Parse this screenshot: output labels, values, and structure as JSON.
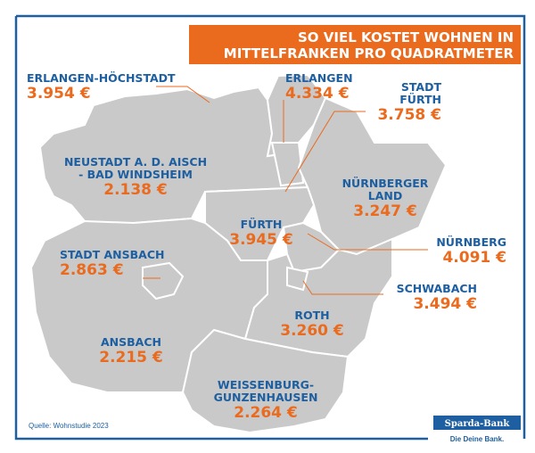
{
  "title_lines": [
    "SO VIEL KOSTET WOHNEN IN",
    "MITTELFRANKEN PRO QUADRATMETER"
  ],
  "regions": [
    {
      "name_lines": [
        "ERLANGEN-HÖCHSTADT"
      ],
      "price": "3.954 €"
    },
    {
      "name_lines": [
        "ERLANGEN"
      ],
      "price": "4.334 €"
    },
    {
      "name_lines": [
        "STADT",
        "FÜRTH"
      ],
      "price": "3.758 €"
    },
    {
      "name_lines": [
        "NEUSTADT A. D. AISCH",
        "- BAD WINDSHEIM"
      ],
      "price": "2.138 €"
    },
    {
      "name_lines": [
        "NÜRNBERGER",
        "LAND"
      ],
      "price": "3.247 €"
    },
    {
      "name_lines": [
        "FÜRTH"
      ],
      "price": "3.945 €"
    },
    {
      "name_lines": [
        "NÜRNBERG"
      ],
      "price": "4.091 €"
    },
    {
      "name_lines": [
        "STADT ANSBACH"
      ],
      "price": "2.863 €"
    },
    {
      "name_lines": [
        "SCHWABACH"
      ],
      "price": "3.494 €"
    },
    {
      "name_lines": [
        "ROTH"
      ],
      "price": "3.260 €"
    },
    {
      "name_lines": [
        "ANSBACH"
      ],
      "price": "2.215 €"
    },
    {
      "name_lines": [
        "WEISSENBURG-",
        "GUNZENHAUSEN"
      ],
      "price": "2.264 €"
    }
  ],
  "source": "Quelle: Wohnstudie 2023",
  "logo": {
    "name": "Sparda-Bank",
    "slogan": "Die Deine Bank."
  }
}
